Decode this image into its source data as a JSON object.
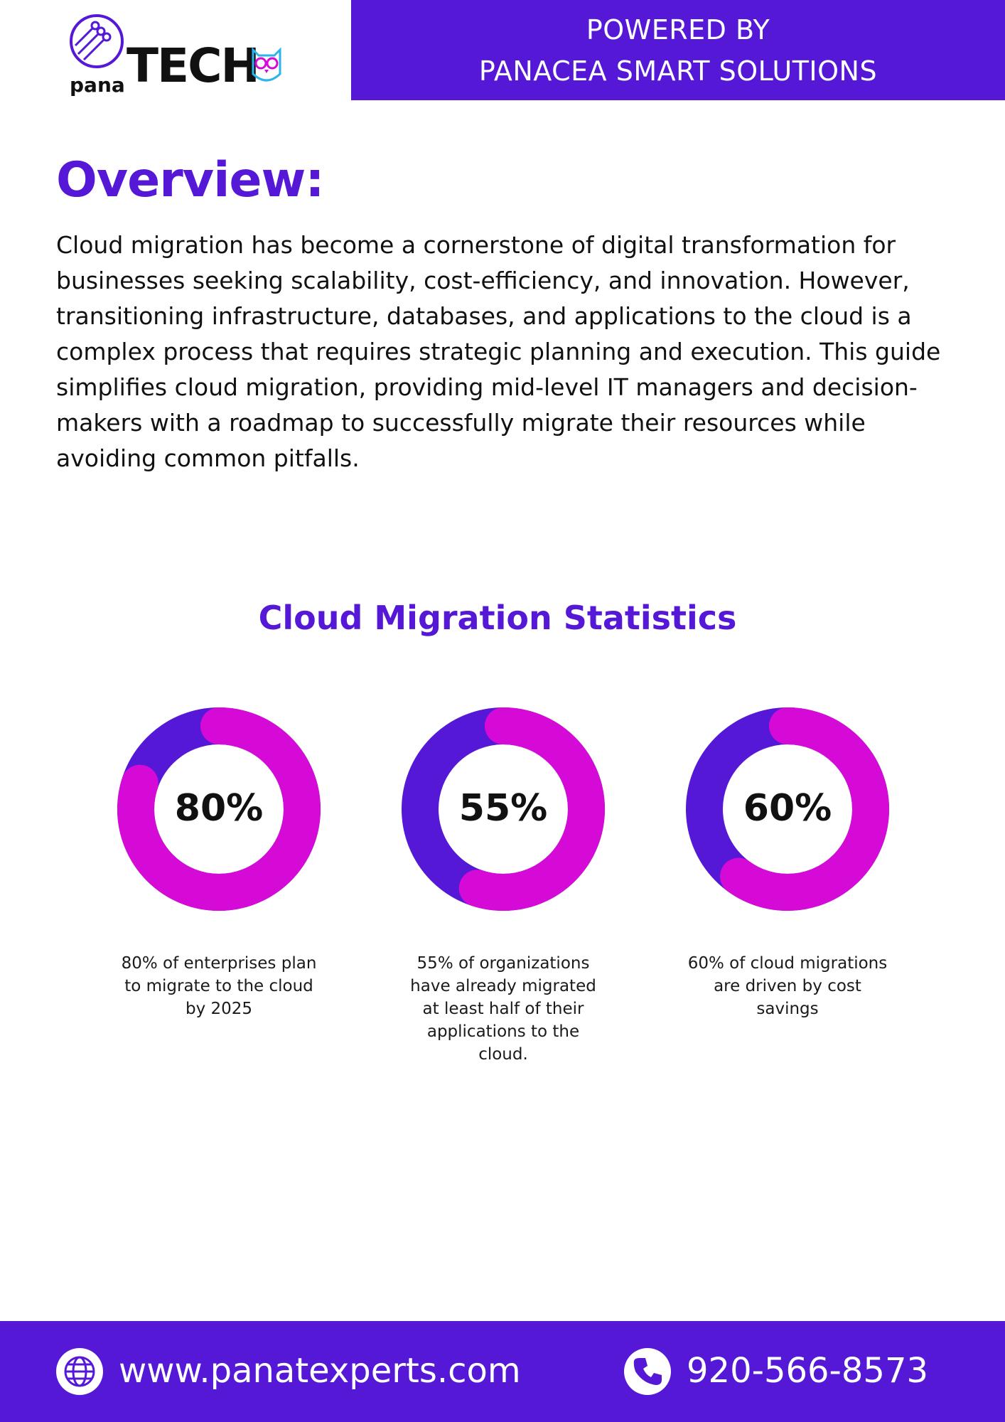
{
  "header": {
    "logo_prefix": "pana",
    "logo_main": "TECH",
    "powered_line1": "POWERED BY",
    "powered_line2": "PANACEA SMART SOLUTIONS"
  },
  "overview": {
    "title": "Overview:",
    "body": "Cloud migration has become a cornerstone of digital transformation for businesses seeking scalability, cost-efficiency, and innovation. However, transitioning infrastructure, databases, and applications to the cloud is a complex process that requires strategic planning and execution. This guide simplifies cloud migration, providing mid-level IT managers and decision-makers with a roadmap to successfully migrate their resources while avoiding common pitfalls."
  },
  "stats_title": "Cloud Migration Statistics",
  "colors": {
    "brand": "#5518d6",
    "accent": "#d60ad6"
  },
  "chart_data": [
    {
      "type": "pie",
      "label": "80%",
      "values": [
        80,
        20
      ],
      "caption": "80% of enterprises plan to migrate to the cloud by 2025"
    },
    {
      "type": "pie",
      "label": "55%",
      "values": [
        55,
        45
      ],
      "caption": "55% of organizations have already migrated at least half of their applications to the cloud."
    },
    {
      "type": "pie",
      "label": "60%",
      "values": [
        60,
        40
      ],
      "caption": "60% of cloud migrations are driven by cost savings"
    }
  ],
  "footer": {
    "website": "www.panatexperts.com",
    "website_icon": "globe-icon",
    "phone": "920-566-8573",
    "phone_icon": "phone-icon"
  }
}
